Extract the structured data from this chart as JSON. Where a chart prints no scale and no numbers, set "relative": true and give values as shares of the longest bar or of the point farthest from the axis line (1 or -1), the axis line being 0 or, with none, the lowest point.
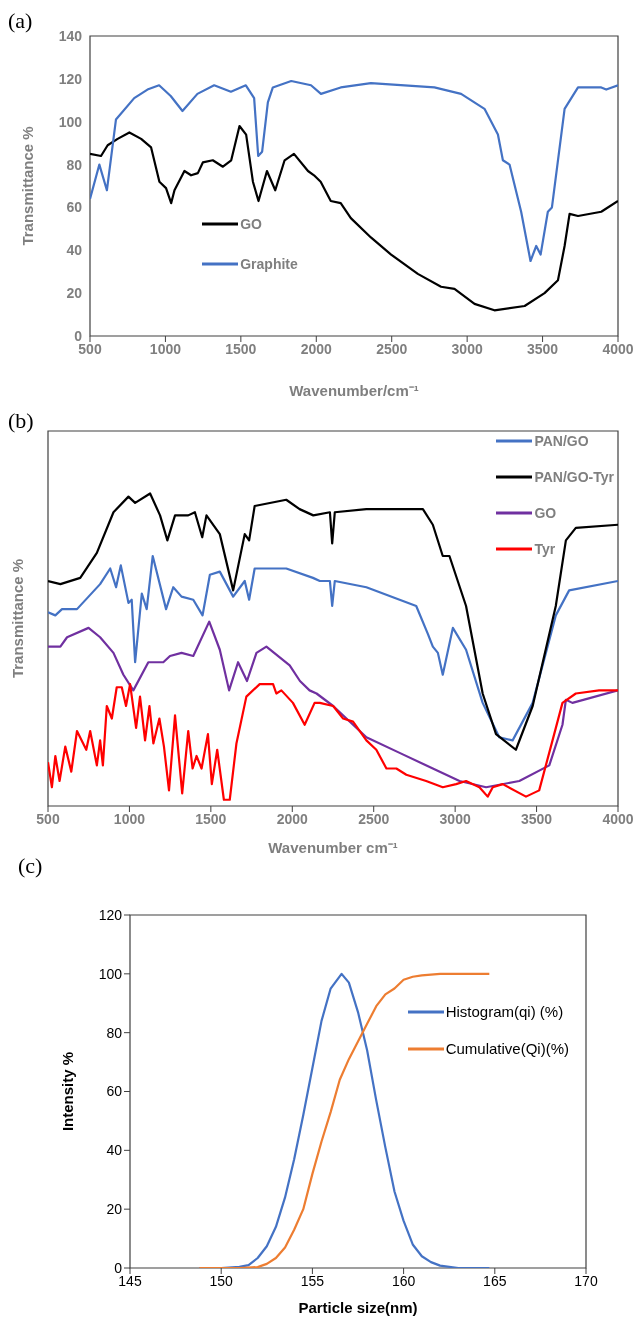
{
  "chart_data": [
    {
      "type": "line",
      "annotations": [
        "(a)"
      ],
      "xlabel": "Wavenumber/cm⁻¹",
      "ylabel": "Transmittance %",
      "xlim": [
        500,
        4000
      ],
      "xticks": [
        500,
        1000,
        1500,
        2000,
        2500,
        3000,
        3500,
        4000
      ],
      "ylim": [
        0,
        140
      ],
      "yticks": [
        0,
        20,
        40,
        60,
        80,
        100,
        120,
        140
      ],
      "legend": "bottom left",
      "series": [
        {
          "name": "GO",
          "color": "#000000",
          "x": [
            500,
            573,
            617,
            683,
            761,
            839,
            905,
            960,
            1004,
            1038,
            1060,
            1126,
            1170,
            1215,
            1248,
            1314,
            1381,
            1436,
            1491,
            1535,
            1580,
            1617,
            1673,
            1728,
            1790,
            1852,
            1945,
            1985,
            2029,
            2096,
            2162,
            2229,
            2362,
            2496,
            2673,
            2827,
            2916,
            3049,
            3181,
            3381,
            3513,
            3602,
            3646,
            3679,
            3735,
            3889,
            4000
          ],
          "values": [
            85,
            84,
            89,
            92,
            95,
            92,
            88,
            72,
            69,
            62,
            68,
            77,
            75,
            76,
            81,
            82,
            79,
            82,
            98,
            94,
            72,
            63,
            77,
            68,
            82,
            85,
            77,
            75,
            72,
            63,
            62,
            55,
            46,
            38,
            29,
            23,
            22,
            15,
            12,
            14,
            20,
            26,
            42,
            57,
            56,
            58,
            63
          ]
        },
        {
          "name": "Graphite",
          "color": "#4472c4",
          "x": [
            500,
            562,
            612,
            672,
            793,
            881,
            958,
            1035,
            1113,
            1212,
            1323,
            1434,
            1533,
            1588,
            1615,
            1641,
            1679,
            1712,
            1834,
            1965,
            2031,
            2162,
            2362,
            2783,
            2960,
            3115,
            3204,
            3237,
            3281,
            3358,
            3420,
            3458,
            3487,
            3535,
            3562,
            3646,
            3735,
            3889,
            3922,
            4000
          ],
          "values": [
            64,
            80,
            68,
            101,
            111,
            115,
            117,
            112,
            105,
            113,
            117,
            114,
            117,
            111,
            84,
            86,
            109,
            116,
            119,
            117,
            113,
            116,
            118,
            116,
            113,
            106,
            94,
            82,
            80,
            58,
            35,
            42,
            38,
            58,
            60,
            106,
            116,
            116,
            115,
            117
          ]
        }
      ]
    },
    {
      "type": "line",
      "annotations": [
        "(b)"
      ],
      "xlabel": "Wavenumber cm⁻¹",
      "ylabel": "Transmittance %",
      "relative": true,
      "tick_labels": "x",
      "xlim": [
        500,
        4000
      ],
      "xticks": [
        500,
        1000,
        1500,
        2000,
        2500,
        3000,
        3500,
        4000
      ],
      "legend": "top right",
      "series": [
        {
          "name": "PAN/GO",
          "color": "#4472c4",
          "x": [
            500,
            545,
            586,
            678,
            820,
            882,
            918,
            947,
            994,
            1014,
            1035,
            1076,
            1106,
            1143,
            1225,
            1269,
            1320,
            1392,
            1449,
            1494,
            1555,
            1637,
            1708,
            1735,
            1769,
            1963,
            2127,
            2169,
            2231,
            2245,
            2261,
            2455,
            2659,
            2761,
            2833,
            2863,
            2894,
            2924,
            2986,
            3067,
            3169,
            3271,
            3353,
            3476,
            3618,
            3700,
            4000
          ],
          "values": [
            0.62,
            0.61,
            0.63,
            0.63,
            0.71,
            0.76,
            0.7,
            0.77,
            0.65,
            0.66,
            0.46,
            0.68,
            0.63,
            0.8,
            0.63,
            0.7,
            0.67,
            0.66,
            0.61,
            0.74,
            0.75,
            0.67,
            0.72,
            0.66,
            0.76,
            0.76,
            0.73,
            0.72,
            0.72,
            0.64,
            0.72,
            0.7,
            0.66,
            0.64,
            0.55,
            0.51,
            0.49,
            0.42,
            0.57,
            0.5,
            0.33,
            0.22,
            0.21,
            0.33,
            0.61,
            0.69,
            0.72
          ]
        },
        {
          "name": "PAN/GO-Tyr",
          "color": "#000000",
          "x": [
            500,
            576,
            698,
            800,
            902,
            994,
            1035,
            1127,
            1188,
            1233,
            1280,
            1361,
            1402,
            1447,
            1473,
            1555,
            1637,
            1708,
            1735,
            1769,
            1963,
            2045,
            2129,
            2231,
            2245,
            2261,
            2455,
            2659,
            2802,
            2863,
            2924,
            2965,
            3067,
            3169,
            3251,
            3373,
            3476,
            3618,
            3680,
            3741,
            4000
          ],
          "values": [
            0.72,
            0.71,
            0.73,
            0.81,
            0.94,
            0.99,
            0.97,
            1.0,
            0.93,
            0.85,
            0.93,
            0.93,
            0.94,
            0.86,
            0.93,
            0.87,
            0.69,
            0.87,
            0.85,
            0.96,
            0.98,
            0.95,
            0.93,
            0.94,
            0.84,
            0.94,
            0.95,
            0.95,
            0.95,
            0.9,
            0.8,
            0.8,
            0.64,
            0.36,
            0.23,
            0.18,
            0.32,
            0.64,
            0.85,
            0.89,
            0.9
          ]
        },
        {
          "name": "GO",
          "color": "#7030a0",
          "x": [
            500,
            576,
            617,
            749,
            820,
            902,
            963,
            1024,
            1116,
            1208,
            1249,
            1320,
            1392,
            1490,
            1555,
            1612,
            1667,
            1722,
            1780,
            1841,
            1984,
            2047,
            2106,
            2149,
            2251,
            2455,
            2659,
            2863,
            3027,
            3190,
            3394,
            3578,
            3659,
            3680,
            3720,
            4000
          ],
          "values": [
            0.51,
            0.51,
            0.54,
            0.57,
            0.54,
            0.49,
            0.42,
            0.37,
            0.46,
            0.46,
            0.48,
            0.49,
            0.48,
            0.59,
            0.5,
            0.37,
            0.46,
            0.4,
            0.49,
            0.51,
            0.45,
            0.4,
            0.37,
            0.36,
            0.32,
            0.22,
            0.17,
            0.12,
            0.08,
            0.06,
            0.08,
            0.13,
            0.26,
            0.34,
            0.33,
            0.37
          ]
        },
        {
          "name": "Tyr",
          "color": "#ff0000",
          "x": [
            500,
            524,
            545,
            571,
            606,
            643,
            678,
            735,
            759,
            800,
            820,
            837,
            861,
            892,
            922,
            953,
            979,
            1004,
            1041,
            1065,
            1096,
            1123,
            1147,
            1184,
            1212,
            1243,
            1280,
            1324,
            1361,
            1388,
            1412,
            1443,
            1482,
            1506,
            1539,
            1580,
            1616,
            1657,
            1718,
            1800,
            1882,
            1902,
            1933,
            2004,
            2076,
            2137,
            2169,
            2251,
            2312,
            2373,
            2455,
            2516,
            2578,
            2639,
            2700,
            2822,
            2924,
            3006,
            3067,
            3149,
            3200,
            3231,
            3292,
            3435,
            3516,
            3598,
            3659,
            3741,
            3884,
            4000
          ],
          "values": [
            0.14,
            0.06,
            0.16,
            0.08,
            0.19,
            0.11,
            0.24,
            0.18,
            0.24,
            0.13,
            0.21,
            0.13,
            0.32,
            0.28,
            0.38,
            0.38,
            0.32,
            0.39,
            0.25,
            0.35,
            0.21,
            0.32,
            0.2,
            0.28,
            0.19,
            0.05,
            0.29,
            0.04,
            0.24,
            0.12,
            0.16,
            0.12,
            0.23,
            0.07,
            0.18,
            0.02,
            0.02,
            0.2,
            0.35,
            0.39,
            0.39,
            0.36,
            0.37,
            0.33,
            0.26,
            0.33,
            0.33,
            0.32,
            0.28,
            0.27,
            0.21,
            0.18,
            0.12,
            0.12,
            0.1,
            0.08,
            0.06,
            0.07,
            0.08,
            0.06,
            0.03,
            0.06,
            0.07,
            0.03,
            0.05,
            0.21,
            0.33,
            0.36,
            0.37,
            0.37
          ]
        }
      ]
    },
    {
      "type": "line",
      "annotations": [
        "(c)"
      ],
      "xlabel": "Particle size(nm)",
      "ylabel": "Intensity %",
      "xlim": [
        145,
        170
      ],
      "xticks": [
        145,
        150,
        155,
        160,
        165,
        170
      ],
      "ylim": [
        0,
        120
      ],
      "yticks": [
        0,
        20,
        40,
        60,
        80,
        100,
        120
      ],
      "legend": "right",
      "series": [
        {
          "name": "Histogram(qi) (%)",
          "color": "#4472c4",
          "x": [
            148.8,
            150,
            151,
            151.5,
            152,
            152.5,
            153,
            153.5,
            154,
            154.5,
            155,
            155.5,
            156,
            156.6,
            157,
            157.5,
            158,
            158.5,
            159,
            159.5,
            160,
            160.5,
            161,
            161.5,
            162,
            163,
            164.7
          ],
          "values": [
            0,
            0,
            0.4,
            1,
            3.4,
            7.4,
            14,
            24,
            37,
            52,
            68,
            84,
            95,
            100,
            97,
            87,
            74,
            57,
            41,
            26,
            16,
            8,
            4,
            2,
            0.8,
            0,
            0
          ]
        },
        {
          "name": "Cumulative(Qi)(%)",
          "color": "#ed7d31",
          "x": [
            148.8,
            151,
            152,
            152.5,
            153,
            153.5,
            154,
            154.5,
            155,
            155.5,
            156,
            156.5,
            157,
            157.5,
            158,
            158.5,
            159,
            159.5,
            160,
            160.5,
            161,
            162,
            164.7
          ],
          "values": [
            0,
            0,
            0.3,
            1.4,
            3.4,
            7,
            13,
            20,
            32,
            43,
            53,
            64,
            71,
            77,
            83,
            89,
            93,
            95,
            98,
            99,
            99.5,
            100,
            100
          ]
        }
      ]
    }
  ]
}
